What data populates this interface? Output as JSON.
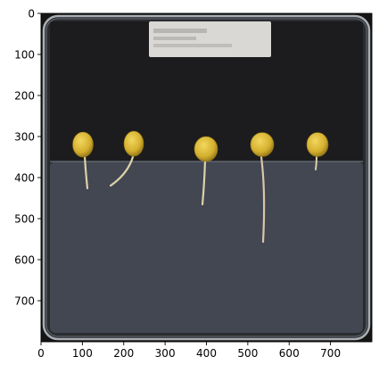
{
  "figure": {
    "image_extent": {
      "x": [
        0,
        800
      ],
      "y": [
        0,
        800
      ]
    },
    "x_ticks": [
      {
        "value": 0,
        "label": "0"
      },
      {
        "value": 100,
        "label": "100"
      },
      {
        "value": 200,
        "label": "200"
      },
      {
        "value": 300,
        "label": "300"
      },
      {
        "value": 400,
        "label": "400"
      },
      {
        "value": 500,
        "label": "500"
      },
      {
        "value": 600,
        "label": "600"
      },
      {
        "value": 700,
        "label": "700"
      }
    ],
    "y_ticks": [
      {
        "value": 0,
        "label": "0"
      },
      {
        "value": 100,
        "label": "100"
      },
      {
        "value": 200,
        "label": "200"
      },
      {
        "value": 300,
        "label": "300"
      },
      {
        "value": 400,
        "label": "400"
      },
      {
        "value": 500,
        "label": "500"
      },
      {
        "value": 600,
        "label": "600"
      },
      {
        "value": 700,
        "label": "700"
      }
    ],
    "colors": {
      "background_black": "#151515",
      "gel_gray": "#424752",
      "plate_rim": "#a9aeb3",
      "kernel_yellow": "#d8b636",
      "root_cream": "#ddd1a8",
      "label_sticker": "#d9d8d5"
    }
  }
}
